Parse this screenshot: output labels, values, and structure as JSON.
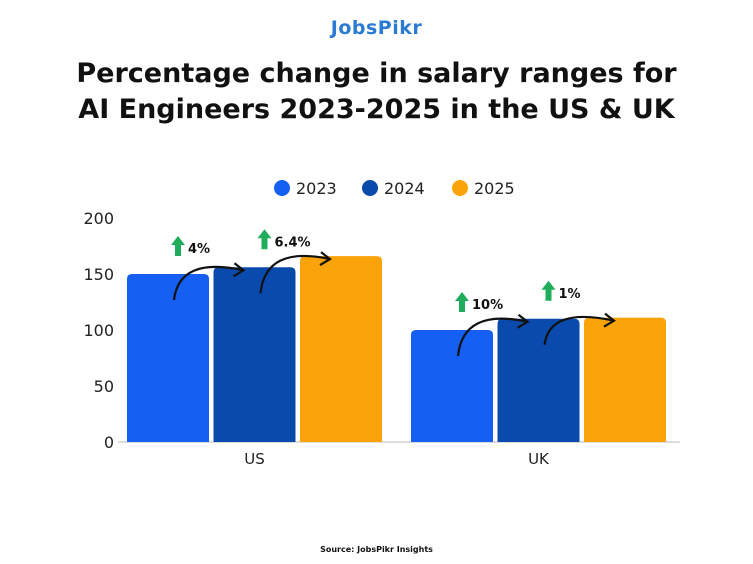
{
  "logo": "JobsPikr",
  "title_line1": "Percentage change in salary ranges for",
  "title_line2": "AI Engineers 2023-2025 in the US & UK",
  "source": "Source: JobsPikr Insights",
  "chart_data": {
    "type": "bar",
    "categories": [
      "US",
      "UK"
    ],
    "series": [
      {
        "name": "2023",
        "values": [
          150,
          100
        ],
        "color": "#1560f2"
      },
      {
        "name": "2024",
        "values": [
          156,
          110
        ],
        "color": "#0a4aad"
      },
      {
        "name": "2025",
        "values": [
          166,
          111
        ],
        "color": "#fba30b"
      }
    ],
    "ylim": [
      0,
      200
    ],
    "yticks": [
      0,
      50,
      100,
      150,
      200
    ],
    "grid": false,
    "legend": "top-center",
    "annotations": [
      {
        "category": "US",
        "from": "2023",
        "to": "2024",
        "label": "4%"
      },
      {
        "category": "US",
        "from": "2024",
        "to": "2025",
        "label": "6.4%"
      },
      {
        "category": "UK",
        "from": "2023",
        "to": "2024",
        "label": "10%"
      },
      {
        "category": "UK",
        "from": "2024",
        "to": "2025",
        "label": "1%"
      }
    ],
    "annotation_arrow_color": "#1fad5c"
  }
}
